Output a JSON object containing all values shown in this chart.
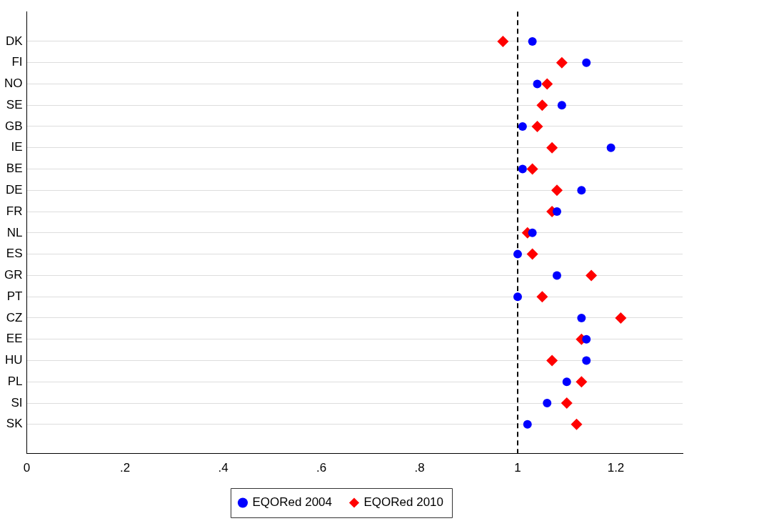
{
  "chart_data": {
    "type": "scatter",
    "orientation": "horizontal",
    "categories": [
      "DK",
      "FI",
      "NO",
      "SE",
      "GB",
      "IE",
      "BE",
      "DE",
      "FR",
      "NL",
      "ES",
      "GR",
      "PT",
      "CZ",
      "EE",
      "HU",
      "PL",
      "SI",
      "SK"
    ],
    "series": [
      {
        "name": "EQORed 2004",
        "color": "#0000ff",
        "marker": "circle",
        "values": [
          1.03,
          1.14,
          1.04,
          1.09,
          1.01,
          1.19,
          1.01,
          1.13,
          1.08,
          1.03,
          1.0,
          1.08,
          1.0,
          1.13,
          1.14,
          1.14,
          1.1,
          1.06,
          1.02
        ]
      },
      {
        "name": "EQORed 2010",
        "color": "#ff0000",
        "marker": "diamond",
        "values": [
          0.97,
          1.09,
          1.06,
          1.05,
          1.04,
          1.07,
          1.03,
          1.08,
          1.07,
          1.02,
          1.03,
          1.15,
          1.05,
          1.21,
          1.13,
          1.07,
          1.13,
          1.1,
          1.12
        ]
      }
    ],
    "xlim": [
      0,
      1.336
    ],
    "xticks": [
      0,
      {
        "value": 0.2,
        "label": ".2"
      },
      {
        "value": 0.4,
        "label": ".4"
      },
      {
        "value": 0.6,
        "label": ".6"
      },
      {
        "value": 0.8,
        "label": ".8"
      },
      1,
      {
        "value": 1.2,
        "label": "1.2"
      }
    ],
    "ref_lines": [
      {
        "axis": "x",
        "value": 1,
        "color": "#000000",
        "line_style": "dashed"
      }
    ],
    "grid": "y",
    "legend": "bottom"
  }
}
